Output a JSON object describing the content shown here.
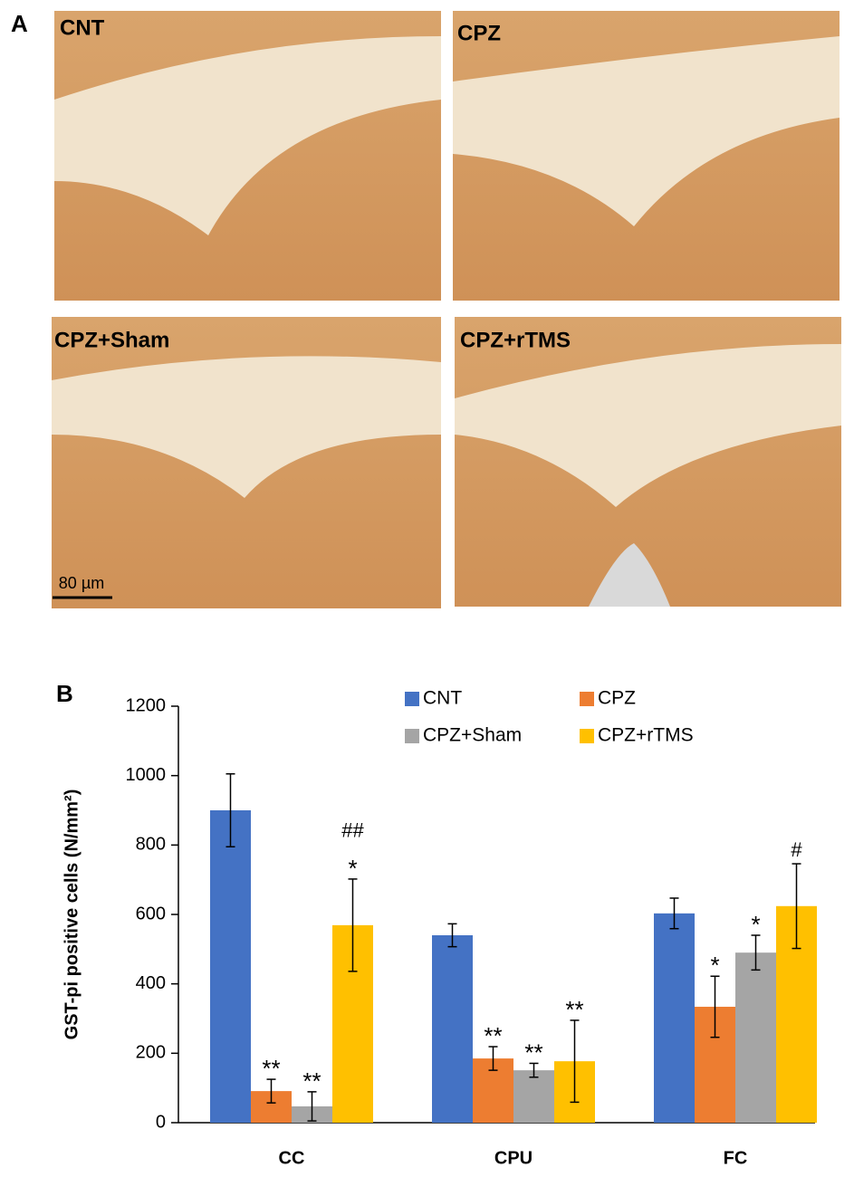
{
  "figure": {
    "panel_a": {
      "label": "A",
      "images": [
        "CNT",
        "CPZ",
        "CPZ+Sham",
        "CPZ+rTMS"
      ],
      "scale_bar": "80 µm"
    }
  },
  "chart_data": {
    "type": "bar",
    "panel_label": "B",
    "y_label": "GST-pi positive cells (N/mm²)",
    "categories": [
      "CC",
      "CPU",
      "FC"
    ],
    "series": [
      {
        "name": "CNT",
        "color": "#4472c4",
        "values": [
          900,
          540,
          603
        ],
        "errors": [
          105,
          33,
          44
        ],
        "stars": [
          null,
          null,
          null
        ]
      },
      {
        "name": "CPZ",
        "color": "#ed7d31",
        "values": [
          91,
          185,
          334
        ],
        "errors": [
          34,
          34,
          88
        ],
        "stars": [
          "**",
          "**",
          "*"
        ]
      },
      {
        "name": "CPZ+Sham",
        "color": "#a5a5a5",
        "values": [
          47,
          151,
          490
        ],
        "errors": [
          42,
          20,
          50
        ],
        "stars": [
          "**",
          "**",
          "*"
        ]
      },
      {
        "name": "CPZ+rTMS",
        "color": "#ffc000",
        "values": [
          569,
          177,
          624
        ],
        "errors": [
          133,
          118,
          122
        ],
        "stars": [
          "*",
          "**",
          null
        ],
        "hashes": [
          "##",
          null,
          "#"
        ]
      }
    ],
    "ylim": [
      0,
      1200
    ],
    "yticks": [
      0,
      200,
      400,
      600,
      800,
      1000,
      1200
    ]
  }
}
